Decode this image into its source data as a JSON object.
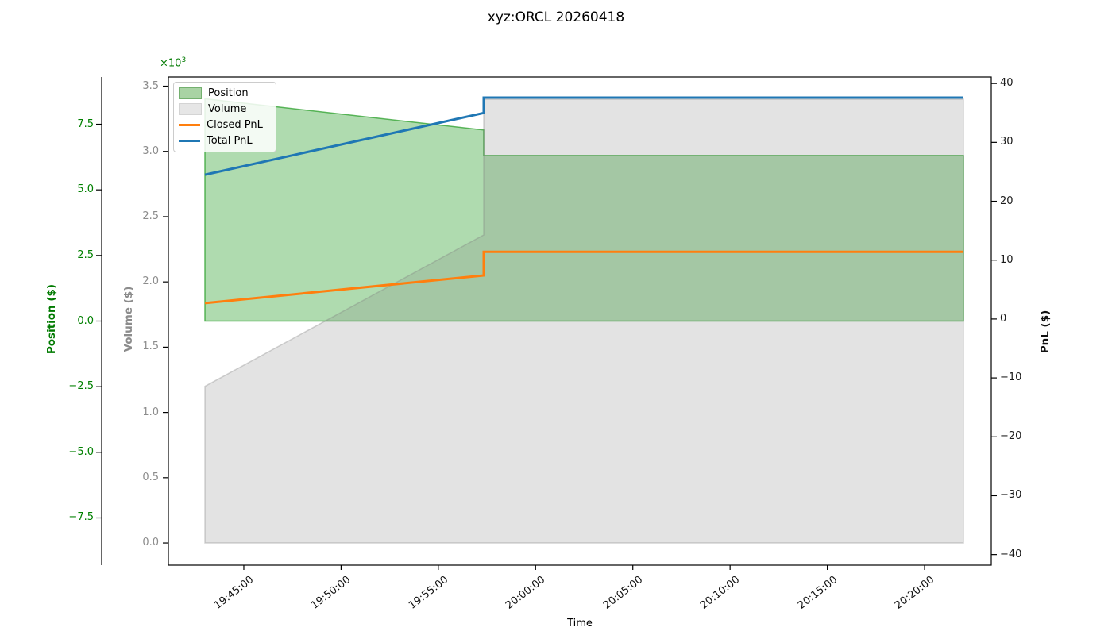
{
  "chart": {
    "title": "xyz:ORCL 20260418",
    "x_axis": {
      "label": "Time",
      "tick_labels": [
        "19:45:00",
        "19:50:00",
        "19:55:00",
        "20:00:00",
        "20:05:00",
        "20:10:00",
        "20:15:00",
        "20:20:00"
      ]
    },
    "position_axis": {
      "label": "Position ($)",
      "offset_text": "×10",
      "offset_exp": "3",
      "color": "#008000",
      "tick_labels": [
        "7.5",
        "5.0",
        "2.5",
        "0.0",
        "−2.5",
        "−5.0",
        "−7.5"
      ]
    },
    "volume_axis": {
      "label": "Volume ($)",
      "color": "#8c8c8c",
      "tick_labels": [
        "3.5",
        "3.0",
        "2.5",
        "2.0",
        "1.5",
        "1.0",
        "0.5",
        "0.0"
      ]
    },
    "pnl_axis": {
      "label": "PnL ($)",
      "color": "#111111",
      "tick_labels": [
        "40",
        "30",
        "20",
        "10",
        "0",
        "−10",
        "−20",
        "−30",
        "−40"
      ]
    },
    "legend": {
      "items": [
        {
          "label": "Position",
          "type": "patch",
          "color": "#a9d3a4",
          "edge": "#74b06f"
        },
        {
          "label": "Volume",
          "type": "patch",
          "color": "#e6e6e6",
          "edge": "#d4d4d4"
        },
        {
          "label": "Closed PnL",
          "type": "line",
          "color": "#ff7f0e"
        },
        {
          "label": "Total PnL",
          "type": "line",
          "color": "#1f77b4"
        }
      ]
    }
  },
  "chart_data": {
    "type": "area",
    "x_unit": "time",
    "x_domain": [
      "19:43:00",
      "20:22:00"
    ],
    "axis_ranges": {
      "position_ylim": [
        -9.3,
        9.3
      ],
      "volume_ylim": [
        -0.17,
        3.57
      ],
      "pnl_ylim": [
        -41.8,
        41.1
      ]
    },
    "series": [
      {
        "name": "Position",
        "axis": "position",
        "style": "area",
        "unit": "x10^3 $",
        "fill": "rgba(44,160,44,0.38)",
        "edge": "rgba(44,160,44,0.75)",
        "points": [
          [
            "19:43:00",
            8.47
          ],
          [
            "19:57:20",
            7.28
          ],
          [
            "19:57:20",
            6.31
          ],
          [
            "20:22:00",
            6.31
          ]
        ]
      },
      {
        "name": "Volume",
        "axis": "volume",
        "style": "area",
        "unit": "x10^3 $",
        "fill": "rgba(128,128,128,0.22)",
        "edge": "rgba(128,128,128,0.35)",
        "points": [
          [
            "19:43:00",
            1.2
          ],
          [
            "19:57:20",
            2.36
          ],
          [
            "19:57:20",
            3.4
          ],
          [
            "20:22:00",
            3.4
          ]
        ]
      },
      {
        "name": "Closed PnL",
        "axis": "pnl",
        "style": "line",
        "unit": "$",
        "color": "#ff7f0e",
        "points": [
          [
            "19:43:00",
            2.7
          ],
          [
            "19:57:20",
            7.4
          ],
          [
            "19:57:20",
            11.4
          ],
          [
            "20:22:00",
            11.4
          ]
        ]
      },
      {
        "name": "Total PnL",
        "axis": "pnl",
        "style": "line",
        "unit": "$",
        "color": "#1f77b4",
        "points": [
          [
            "19:43:00",
            24.5
          ],
          [
            "19:57:20",
            35.0
          ],
          [
            "19:57:20",
            37.6
          ],
          [
            "20:22:00",
            37.6
          ]
        ]
      }
    ]
  }
}
